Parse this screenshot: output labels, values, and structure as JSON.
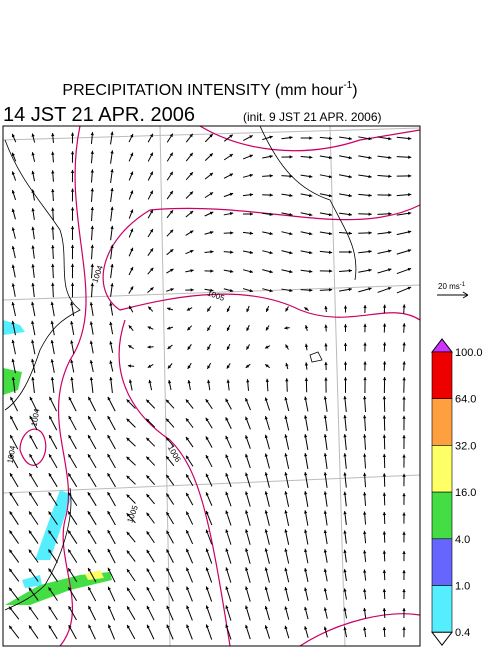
{
  "header": {
    "title": {
      "text": "PRECIPITATION INTENSITY (mm hour",
      "superscript": "-1",
      "suffix": ")"
    },
    "valid_time": "14 JST 21 APR. 2006",
    "init_time": "(init. 9 JST 21 APR. 2006)"
  },
  "wind_scale": {
    "text": "20 ms",
    "superscript": "-1"
  },
  "contour_labels": [
    "1004",
    "1005",
    "1006",
    "1004",
    "1004",
    "1005"
  ],
  "colorbar": {
    "over_color": "#cc33ff",
    "under_color": "#ffffff",
    "bins": [
      {
        "label": "100.0",
        "color": "#ee0000"
      },
      {
        "label": "64.0",
        "color": "#ffa040"
      },
      {
        "label": "32.0",
        "color": "#ffff66"
      },
      {
        "label": "16.0",
        "color": "#44dd44"
      },
      {
        "label": "4.0",
        "color": "#6666ff"
      },
      {
        "label": "1.0",
        "color": "#55eeff"
      }
    ],
    "bottom_label": "0.4"
  }
}
